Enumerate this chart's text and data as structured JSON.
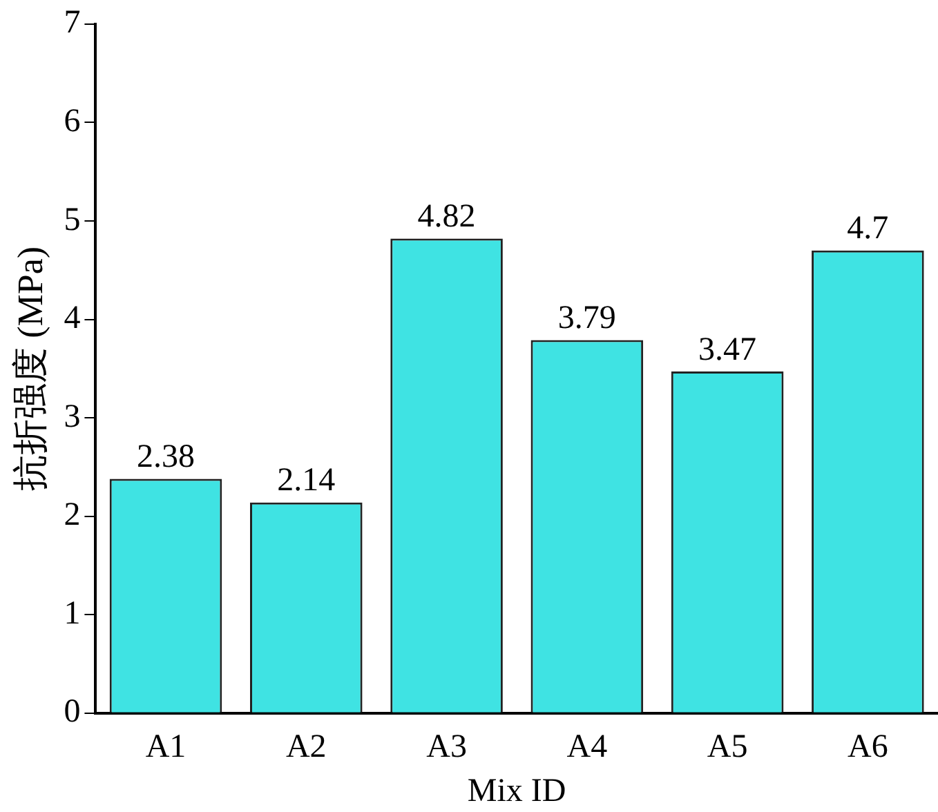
{
  "chart_data": {
    "type": "bar",
    "xlabel": "Mix ID",
    "ylabel": "抗折强度 (MPa)",
    "categories": [
      "A1",
      "A2",
      "A3",
      "A4",
      "A5",
      "A6"
    ],
    "values": [
      2.38,
      2.14,
      4.82,
      3.79,
      3.47,
      4.7
    ],
    "value_labels": [
      "2.38",
      "2.14",
      "4.82",
      "3.79",
      "3.47",
      "4.7"
    ],
    "color": "#3fe3e3",
    "ylim": [
      0,
      7
    ],
    "yticks": [
      0,
      1,
      2,
      3,
      4,
      5,
      6,
      7
    ],
    "grid": false,
    "legend": false
  }
}
